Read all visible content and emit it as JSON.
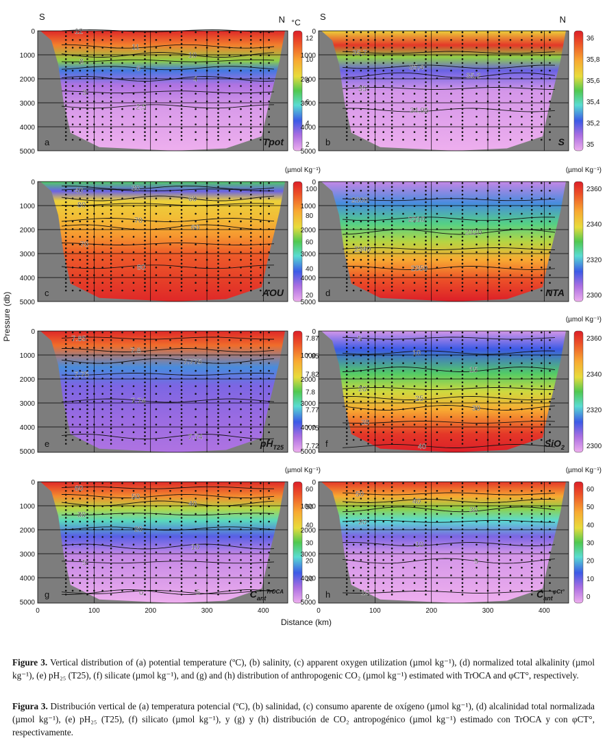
{
  "figure": {
    "y_axis_label": "Pressure (db)",
    "x_axis_label": "Distance (km)",
    "x_ticks": [
      "0",
      "100",
      "200",
      "300",
      "400"
    ],
    "y_ticks": [
      "0",
      "1000",
      "2000",
      "3000",
      "4000",
      "5000"
    ],
    "south_label": "S",
    "north_label": "N"
  },
  "captions": {
    "en_prefix": "Figure 3.",
    "en_text": "Vertical distribution of (a) potential temperature (ºC), (b) salinity, (c) apparent oxygen utilization (µmol kg⁻¹), (d) normalized total alkalinity (µmol kg⁻¹), (e) pH₂₅ (T25), (f) silicate (µmol kg⁻¹), and (g) and (h) distribution of anthropogenic CO₂ (µmol kg⁻¹) estimated with TrOCA and φCT°, respectively.",
    "es_prefix": "Figura 3.",
    "es_text": "Distribución vertical de (a) temperatura potencial (ºC), (b) salinidad, (c) consumo aparente de oxígeno (µmol kg⁻¹), (d) alcalinidad total normalizada (µmol kg⁻¹), (e) pH₂₅ (T25), (f) silicato (µmol kg⁻¹), y (g) y (h) distribución de CO₂ antropogénico (µmol kg⁻¹) estimado con TrOCA y con φCT°, respectivamente."
  },
  "chart_data": [
    {
      "type": "heatmap",
      "id": "a",
      "panel_letter": "a",
      "variable": "Tpot",
      "unit": "°C",
      "colorbar": {
        "ticks": [
          "12",
          "10",
          "8",
          "6",
          "4",
          "2"
        ],
        "min": 2,
        "max": 13
      },
      "contours": [
        {
          "label": "12",
          "depth": 0
        },
        {
          "label": "11",
          "depth": 650
        },
        {
          "label": "10",
          "depth": 1000
        },
        {
          "label": "8",
          "depth": 1250
        },
        {
          "label": "6",
          "depth": 1550
        },
        {
          "label": "4",
          "depth": 2000
        },
        {
          "label": "3",
          "depth": 2550
        },
        {
          "label": "2,5",
          "depth": 3150
        }
      ],
      "show_N": true,
      "show_S": true
    },
    {
      "type": "heatmap",
      "id": "b",
      "panel_letter": "b",
      "variable": "S",
      "unit": "",
      "colorbar": {
        "ticks": [
          "36",
          "35,8",
          "35,6",
          "35,4",
          "35,2",
          "35"
        ],
        "min": 34.92,
        "max": 36.1
      },
      "contours": [
        {
          "label": "35,7",
          "depth": 900
        },
        {
          "label": "35,4",
          "depth": 1500
        },
        {
          "label": "35,2",
          "depth": 1850
        },
        {
          "label": "35",
          "depth": 2400
        },
        {
          "label": "34,95",
          "depth": 3300
        }
      ],
      "show_N": true,
      "show_S": true
    },
    {
      "type": "heatmap",
      "id": "c",
      "panel_letter": "c",
      "variable": "AOU",
      "unit": "(µmol Kg⁻¹)",
      "colorbar": {
        "ticks": [
          "100",
          "80",
          "60",
          "40",
          "20"
        ],
        "min": 5,
        "max": 102
      },
      "contours": [
        {
          "label": "40",
          "depth": 350
        },
        {
          "label": "30",
          "depth": 250
        },
        {
          "label": "60",
          "depth": 700
        },
        {
          "label": "80",
          "depth": 950
        },
        {
          "label": "70",
          "depth": 1600
        },
        {
          "label": "60",
          "depth": 1900
        },
        {
          "label": "70",
          "depth": 2600
        },
        {
          "label": "80",
          "depth": 3550
        }
      ],
      "show_N": false,
      "show_S": false
    },
    {
      "type": "heatmap",
      "id": "d",
      "panel_letter": "d",
      "variable": "NTA",
      "unit": "(µmol Kg⁻¹)",
      "colorbar": {
        "ticks": [
          "2360",
          "2340",
          "2320",
          "2300"
        ],
        "min": 2292,
        "max": 2366
      },
      "contours": [
        {
          "label": "2300",
          "depth": 750
        },
        {
          "label": "2310",
          "depth": 1550
        },
        {
          "label": "2320",
          "depth": 2100
        },
        {
          "label": "2340",
          "depth": 2800
        },
        {
          "label": "2350",
          "depth": 3600
        }
      ],
      "show_N": false,
      "show_S": false
    },
    {
      "type": "heatmap",
      "id": "e",
      "panel_letter": "e",
      "variable": "pH",
      "variable_sub": "T25",
      "unit": "",
      "colorbar": {
        "ticks": [
          "7.875",
          "7.85",
          "7.825",
          "7.8",
          "7.775",
          "7.75",
          "7.725"
        ],
        "min": 7.725,
        "max": 7.875
      },
      "contours": [
        {
          "label": "7.85",
          "depth": 300
        },
        {
          "label": "7.8",
          "depth": 800
        },
        {
          "label": "7.775",
          "depth": 1250
        },
        {
          "label": "7.75",
          "depth": 1800
        },
        {
          "label": "7.74",
          "depth": 2900
        },
        {
          "label": "7.74",
          "depth": 4400
        }
      ],
      "show_N": false,
      "show_S": false
    },
    {
      "type": "heatmap",
      "id": "f",
      "panel_letter": "f",
      "variable": "SiO",
      "variable_sub": "2",
      "unit": "(µmol Kg⁻¹)",
      "colorbar": {
        "ticks": [
          "2360",
          "2340",
          "2320",
          "2300"
        ],
        "min": 2292,
        "max": 2366
      },
      "contours": [
        {
          "label": "5",
          "depth": 300
        },
        {
          "label": "10",
          "depth": 900
        },
        {
          "label": "15",
          "depth": 1600
        },
        {
          "label": "20",
          "depth": 2400
        },
        {
          "label": "25",
          "depth": 2800
        },
        {
          "label": "30",
          "depth": 3200
        },
        {
          "label": "35",
          "depth": 3800
        },
        {
          "label": "40",
          "depth": 4800
        }
      ],
      "show_N": false,
      "show_S": false
    },
    {
      "type": "heatmap",
      "id": "g",
      "panel_letter": "g",
      "variable": "C",
      "variable_sub": "ant",
      "variable_sup": "TrOCA",
      "unit": "(µmol Kg⁻¹)",
      "colorbar": {
        "ticks": [
          "60",
          "50",
          "40",
          "30",
          "20",
          "10",
          "0"
        ],
        "min": 0,
        "max": 62
      },
      "contours": [
        {
          "label": "60",
          "depth": 250
        },
        {
          "label": "50",
          "depth": 600
        },
        {
          "label": "40",
          "depth": 900
        },
        {
          "label": "30",
          "depth": 1350
        },
        {
          "label": "20",
          "depth": 1950
        },
        {
          "label": "10",
          "depth": 2700
        },
        {
          "label": "5",
          "depth": 3350
        },
        {
          "label": "0",
          "depth": 4600
        },
        {
          "label": "5",
          "depth": 4600
        }
      ],
      "show_N": false,
      "show_S": false
    },
    {
      "type": "heatmap",
      "id": "h",
      "panel_letter": "h",
      "variable": "C",
      "variable_sub": "ant",
      "variable_sup": "φCt°",
      "unit": "(µmol Kg⁻¹)",
      "colorbar": {
        "ticks": [
          "60",
          "50",
          "40",
          "30",
          "20",
          "10",
          "0"
        ],
        "min": 0,
        "max": 62
      },
      "contours": [
        {
          "label": "50",
          "depth": 500
        },
        {
          "label": "40",
          "depth": 800
        },
        {
          "label": "30",
          "depth": 1150
        },
        {
          "label": "20",
          "depth": 1650
        },
        {
          "label": "10",
          "depth": 2600
        },
        {
          "label": "5",
          "depth": 3300
        },
        {
          "label": "10",
          "depth": 4600
        }
      ],
      "show_N": false,
      "show_S": false
    }
  ]
}
